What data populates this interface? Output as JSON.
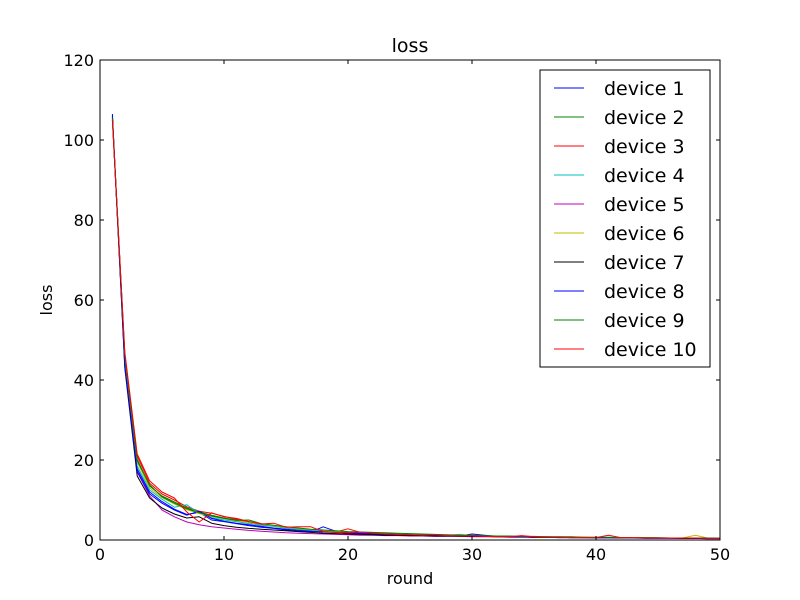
{
  "chart_data": {
    "type": "line",
    "title": "loss",
    "xlabel": "round",
    "ylabel": "loss",
    "xlim": [
      0,
      50
    ],
    "ylim": [
      0,
      120
    ],
    "xticks": [
      0,
      10,
      20,
      30,
      40,
      50
    ],
    "yticks": [
      0,
      20,
      40,
      60,
      80,
      100,
      120
    ],
    "grid": false,
    "legend_position": "top-right",
    "x": [
      1,
      2,
      3,
      4,
      5,
      6,
      7,
      8,
      9,
      10,
      11,
      12,
      13,
      14,
      15,
      16,
      17,
      18,
      19,
      20,
      21,
      22,
      23,
      24,
      25,
      26,
      27,
      28,
      29,
      30,
      31,
      32,
      33,
      34,
      35,
      36,
      37,
      38,
      39,
      40,
      41,
      42,
      43,
      44,
      45,
      46,
      47,
      48,
      49,
      50
    ],
    "series": [
      {
        "name": "device 1",
        "color": "#0000ff",
        "values": [
          106.5,
          44.0,
          17.8,
          12.0,
          9.6,
          7.7,
          6.4,
          6.9,
          5.0,
          4.6,
          4.1,
          3.6,
          3.2,
          2.9,
          2.5,
          2.2,
          2.0,
          3.3,
          2.2,
          1.6,
          1.5,
          1.4,
          1.3,
          1.2,
          1.2,
          1.1,
          1.0,
          1.0,
          1.0,
          1.5,
          1.2,
          0.9,
          0.8,
          0.8,
          0.7,
          0.7,
          0.6,
          0.6,
          0.6,
          0.5,
          0.5,
          0.5,
          0.5,
          0.4,
          0.4,
          0.4,
          0.4,
          0.4,
          0.3,
          0.3
        ]
      },
      {
        "name": "device 2",
        "color": "#008000",
        "values": [
          105.5,
          46.0,
          20.2,
          13.5,
          11.0,
          9.5,
          8.0,
          7.0,
          6.2,
          5.5,
          5.0,
          4.6,
          4.0,
          3.5,
          3.1,
          2.8,
          2.5,
          2.3,
          2.1,
          1.9,
          1.8,
          1.7,
          1.6,
          1.5,
          1.4,
          1.3,
          1.2,
          1.1,
          1.1,
          1.0,
          1.0,
          0.9,
          0.9,
          0.8,
          0.8,
          0.8,
          0.7,
          0.7,
          0.7,
          0.6,
          0.6,
          0.6,
          0.6,
          0.5,
          0.5,
          0.5,
          0.5,
          0.5,
          0.4,
          0.4
        ]
      },
      {
        "name": "device 3",
        "color": "#ff0000",
        "values": [
          105.0,
          46.5,
          21.0,
          14.2,
          11.5,
          10.0,
          8.3,
          7.2,
          6.7,
          5.9,
          5.2,
          4.4,
          3.9,
          3.5,
          3.0,
          2.7,
          2.4,
          2.2,
          2.0,
          2.8,
          1.9,
          1.8,
          1.5,
          1.5,
          1.3,
          1.2,
          1.1,
          1.0,
          1.0,
          0.9,
          0.9,
          0.8,
          0.8,
          0.8,
          0.7,
          0.7,
          0.7,
          0.6,
          0.6,
          0.6,
          0.6,
          0.5,
          0.5,
          0.5,
          0.5,
          0.5,
          0.5,
          0.4,
          0.4,
          0.4
        ]
      },
      {
        "name": "device 4",
        "color": "#00bfbf",
        "values": [
          105.8,
          45.0,
          18.5,
          12.5,
          10.2,
          8.2,
          8.8,
          6.7,
          5.6,
          5.0,
          4.6,
          4.1,
          3.7,
          3.4,
          3.0,
          2.7,
          2.4,
          2.2,
          2.0,
          1.9,
          1.8,
          1.7,
          1.6,
          1.5,
          1.4,
          1.3,
          1.2,
          1.2,
          1.4,
          1.1,
          1.0,
          0.9,
          0.9,
          0.8,
          0.8,
          0.8,
          0.7,
          0.7,
          0.7,
          0.6,
          0.6,
          0.6,
          0.6,
          0.6,
          0.5,
          0.5,
          0.5,
          0.5,
          0.4,
          0.4
        ]
      },
      {
        "name": "device 5",
        "color": "#bf00bf",
        "values": [
          105.2,
          45.5,
          17.0,
          11.0,
          7.5,
          5.8,
          4.5,
          3.8,
          3.3,
          3.0,
          2.7,
          2.4,
          2.2,
          2.0,
          1.8,
          1.7,
          1.6,
          1.5,
          1.4,
          1.3,
          1.2,
          1.2,
          1.1,
          1.1,
          1.0,
          1.0,
          0.9,
          0.9,
          0.9,
          0.8,
          0.8,
          0.8,
          0.7,
          0.7,
          0.7,
          0.7,
          0.6,
          0.6,
          0.6,
          0.6,
          0.5,
          0.5,
          0.5,
          0.5,
          0.5,
          0.5,
          0.5,
          0.4,
          0.4,
          0.4
        ]
      },
      {
        "name": "device 6",
        "color": "#bfbf00",
        "values": [
          105.4,
          45.8,
          19.5,
          13.0,
          10.6,
          9.0,
          7.6,
          6.6,
          5.9,
          5.3,
          4.8,
          4.4,
          4.0,
          3.6,
          3.2,
          2.9,
          2.6,
          2.4,
          2.2,
          2.0,
          1.9,
          1.8,
          1.7,
          1.6,
          1.5,
          1.4,
          1.3,
          1.2,
          1.2,
          1.1,
          1.0,
          1.0,
          0.9,
          0.9,
          0.8,
          0.8,
          0.8,
          0.7,
          0.7,
          0.7,
          0.6,
          0.6,
          0.6,
          0.6,
          0.5,
          0.5,
          0.5,
          1.2,
          0.5,
          0.4
        ]
      },
      {
        "name": "device 7",
        "color": "#000000",
        "values": [
          106.0,
          43.0,
          16.0,
          10.5,
          8.0,
          6.5,
          5.5,
          5.8,
          4.2,
          3.6,
          3.2,
          2.9,
          2.7,
          2.5,
          2.3,
          2.1,
          1.9,
          1.7,
          1.6,
          1.5,
          1.4,
          1.3,
          1.2,
          1.2,
          1.1,
          1.1,
          1.0,
          1.0,
          0.9,
          0.9,
          0.9,
          0.8,
          0.8,
          0.8,
          0.7,
          0.7,
          0.7,
          0.6,
          0.6,
          0.6,
          0.6,
          0.5,
          0.5,
          0.5,
          0.5,
          0.5,
          0.4,
          0.4,
          0.4,
          0.4
        ]
      },
      {
        "name": "device 8",
        "color": "#0000ff",
        "values": [
          106.2,
          43.5,
          17.2,
          11.5,
          9.2,
          7.5,
          6.2,
          7.2,
          5.4,
          4.7,
          4.2,
          3.8,
          3.4,
          3.0,
          2.7,
          2.4,
          2.2,
          2.0,
          1.9,
          1.8,
          1.7,
          1.6,
          1.5,
          1.4,
          1.3,
          1.2,
          1.2,
          1.1,
          1.0,
          1.0,
          0.9,
          0.9,
          0.8,
          0.8,
          0.8,
          0.7,
          0.7,
          0.7,
          0.6,
          0.6,
          0.6,
          0.6,
          0.5,
          0.5,
          0.5,
          0.5,
          0.5,
          0.4,
          0.4,
          0.4
        ]
      },
      {
        "name": "device 9",
        "color": "#008000",
        "values": [
          105.6,
          46.2,
          19.8,
          13.8,
          10.8,
          9.2,
          7.8,
          6.8,
          6.0,
          5.4,
          4.9,
          5.0,
          4.1,
          3.7,
          3.3,
          3.0,
          2.7,
          2.5,
          2.3,
          2.1,
          2.0,
          1.9,
          1.8,
          1.7,
          1.6,
          1.5,
          1.4,
          1.3,
          1.2,
          1.2,
          1.1,
          1.0,
          1.0,
          0.9,
          0.9,
          0.8,
          0.8,
          0.8,
          0.7,
          0.7,
          0.7,
          0.6,
          0.6,
          0.6,
          0.6,
          0.5,
          0.5,
          0.5,
          0.5,
          0.4
        ]
      },
      {
        "name": "device 10",
        "color": "#ff0000",
        "values": [
          105.0,
          47.0,
          21.5,
          14.8,
          12.0,
          10.5,
          7.0,
          4.5,
          6.8,
          5.8,
          5.4,
          4.6,
          4.0,
          4.2,
          3.2,
          3.3,
          3.3,
          2.1,
          1.9,
          1.8,
          2.0,
          1.7,
          1.5,
          1.4,
          1.3,
          1.2,
          1.3,
          1.1,
          1.0,
          1.0,
          0.9,
          0.8,
          0.8,
          1.1,
          0.8,
          0.7,
          0.7,
          0.6,
          0.6,
          0.6,
          1.2,
          0.6,
          0.6,
          0.5,
          0.5,
          0.5,
          0.5,
          0.5,
          0.4,
          0.4
        ]
      }
    ]
  }
}
